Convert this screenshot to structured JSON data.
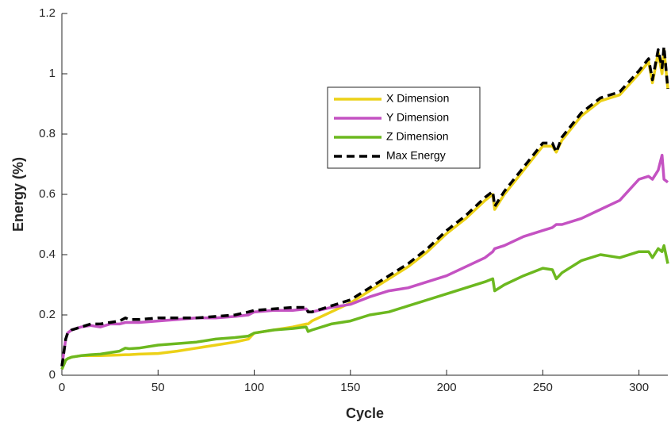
{
  "chart_data": {
    "type": "line",
    "xlabel": "Cycle",
    "ylabel": "Energy (%)",
    "x": [
      0,
      2,
      3,
      5,
      10,
      15,
      20,
      25,
      30,
      33,
      35,
      40,
      50,
      60,
      70,
      80,
      90,
      97,
      100,
      110,
      120,
      127,
      128,
      130,
      140,
      150,
      160,
      170,
      180,
      190,
      200,
      210,
      220,
      224,
      225,
      230,
      240,
      250,
      255,
      257,
      260,
      270,
      280,
      290,
      300,
      305,
      307,
      310,
      312,
      313,
      315
    ],
    "series": [
      {
        "name": "X Dimension",
        "color": "#ecd117",
        "dashed": false,
        "values": [
          0.02,
          0.05,
          0.055,
          0.06,
          0.065,
          0.065,
          0.065,
          0.066,
          0.067,
          0.068,
          0.068,
          0.07,
          0.072,
          0.08,
          0.09,
          0.1,
          0.11,
          0.12,
          0.14,
          0.15,
          0.16,
          0.17,
          0.17,
          0.18,
          0.21,
          0.24,
          0.28,
          0.32,
          0.36,
          0.41,
          0.47,
          0.52,
          0.58,
          0.6,
          0.55,
          0.6,
          0.68,
          0.76,
          0.76,
          0.74,
          0.78,
          0.86,
          0.91,
          0.93,
          1.0,
          1.04,
          0.97,
          1.07,
          1.0,
          1.08,
          0.95
        ]
      },
      {
        "name": "Y Dimension",
        "color": "#c452c2",
        "dashed": false,
        "values": [
          0.03,
          0.12,
          0.14,
          0.15,
          0.16,
          0.165,
          0.16,
          0.17,
          0.17,
          0.175,
          0.175,
          0.175,
          0.18,
          0.185,
          0.19,
          0.19,
          0.195,
          0.2,
          0.21,
          0.215,
          0.215,
          0.22,
          0.21,
          0.21,
          0.225,
          0.235,
          0.26,
          0.28,
          0.29,
          0.31,
          0.33,
          0.36,
          0.39,
          0.41,
          0.42,
          0.43,
          0.46,
          0.48,
          0.49,
          0.5,
          0.5,
          0.52,
          0.55,
          0.58,
          0.65,
          0.66,
          0.65,
          0.68,
          0.73,
          0.65,
          0.64
        ]
      },
      {
        "name": "Z Dimension",
        "color": "#6cb81f",
        "dashed": false,
        "values": [
          0.02,
          0.05,
          0.055,
          0.06,
          0.065,
          0.068,
          0.07,
          0.075,
          0.08,
          0.09,
          0.088,
          0.09,
          0.1,
          0.105,
          0.11,
          0.12,
          0.125,
          0.13,
          0.14,
          0.15,
          0.155,
          0.16,
          0.145,
          0.15,
          0.17,
          0.18,
          0.2,
          0.21,
          0.23,
          0.25,
          0.27,
          0.29,
          0.31,
          0.32,
          0.28,
          0.3,
          0.33,
          0.355,
          0.35,
          0.32,
          0.34,
          0.38,
          0.4,
          0.39,
          0.41,
          0.41,
          0.39,
          0.42,
          0.41,
          0.43,
          0.37
        ]
      },
      {
        "name": "Max Energy",
        "color": "#000000",
        "dashed": true,
        "values": [
          0.03,
          0.12,
          0.14,
          0.15,
          0.16,
          0.17,
          0.17,
          0.175,
          0.18,
          0.19,
          0.185,
          0.185,
          0.19,
          0.19,
          0.19,
          0.195,
          0.2,
          0.21,
          0.215,
          0.22,
          0.225,
          0.225,
          0.21,
          0.21,
          0.23,
          0.25,
          0.29,
          0.33,
          0.37,
          0.42,
          0.48,
          0.53,
          0.59,
          0.61,
          0.56,
          0.61,
          0.69,
          0.77,
          0.77,
          0.74,
          0.79,
          0.87,
          0.92,
          0.94,
          1.01,
          1.05,
          0.98,
          1.08,
          1.02,
          1.09,
          0.95
        ]
      }
    ],
    "xlim": [
      0,
      315
    ],
    "xticks": [
      0,
      50,
      100,
      150,
      200,
      250,
      300
    ],
    "ylim": [
      0,
      1.2
    ],
    "yticks": [
      0,
      0.2,
      0.4,
      0.6,
      0.8,
      1,
      1.2
    ],
    "grid": false,
    "legend_loc": "upper center"
  }
}
